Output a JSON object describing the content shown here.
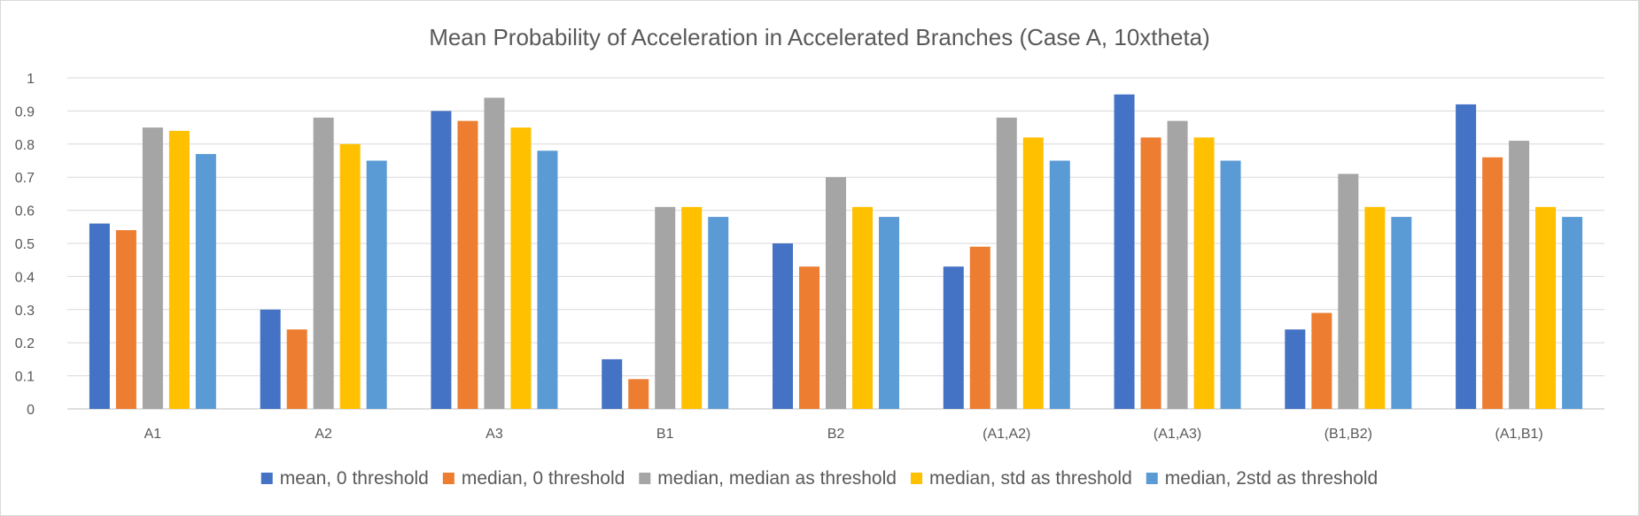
{
  "chart_data": {
    "type": "bar",
    "title": "Mean Probability of Acceleration in Accelerated Branches (Case A, 10xtheta)",
    "xlabel": "",
    "ylabel": "",
    "categories": [
      "A1",
      "A2",
      "A3",
      "B1",
      "B2",
      "(A1,A2)",
      "(A1,A3)",
      "(B1,B2)",
      "(A1,B1)"
    ],
    "ylim": [
      0,
      1
    ],
    "yticks": [
      "0",
      "0.1",
      "0.2",
      "0.3",
      "0.4",
      "0.5",
      "0.6",
      "0.7",
      "0.8",
      "0.9",
      "1"
    ],
    "grid": true,
    "legend_position": "bottom",
    "series": [
      {
        "name": "mean, 0 threshold",
        "color": "#4472C4",
        "values": [
          0.56,
          0.3,
          0.9,
          0.15,
          0.5,
          0.43,
          0.95,
          0.24,
          0.92
        ]
      },
      {
        "name": "median, 0 threshold",
        "color": "#ED7D31",
        "values": [
          0.54,
          0.24,
          0.87,
          0.09,
          0.43,
          0.49,
          0.82,
          0.29,
          0.76
        ]
      },
      {
        "name": "median, median as threshold",
        "color": "#A5A5A5",
        "values": [
          0.85,
          0.88,
          0.94,
          0.61,
          0.7,
          0.88,
          0.87,
          0.71,
          0.81
        ]
      },
      {
        "name": "median, std as threshold",
        "color": "#FFC000",
        "values": [
          0.84,
          0.8,
          0.85,
          0.61,
          0.61,
          0.82,
          0.82,
          0.61,
          0.61
        ]
      },
      {
        "name": "median, 2std as threshold",
        "color": "#5B9BD5",
        "values": [
          0.77,
          0.75,
          0.78,
          0.58,
          0.58,
          0.75,
          0.75,
          0.58,
          0.58
        ]
      }
    ]
  }
}
